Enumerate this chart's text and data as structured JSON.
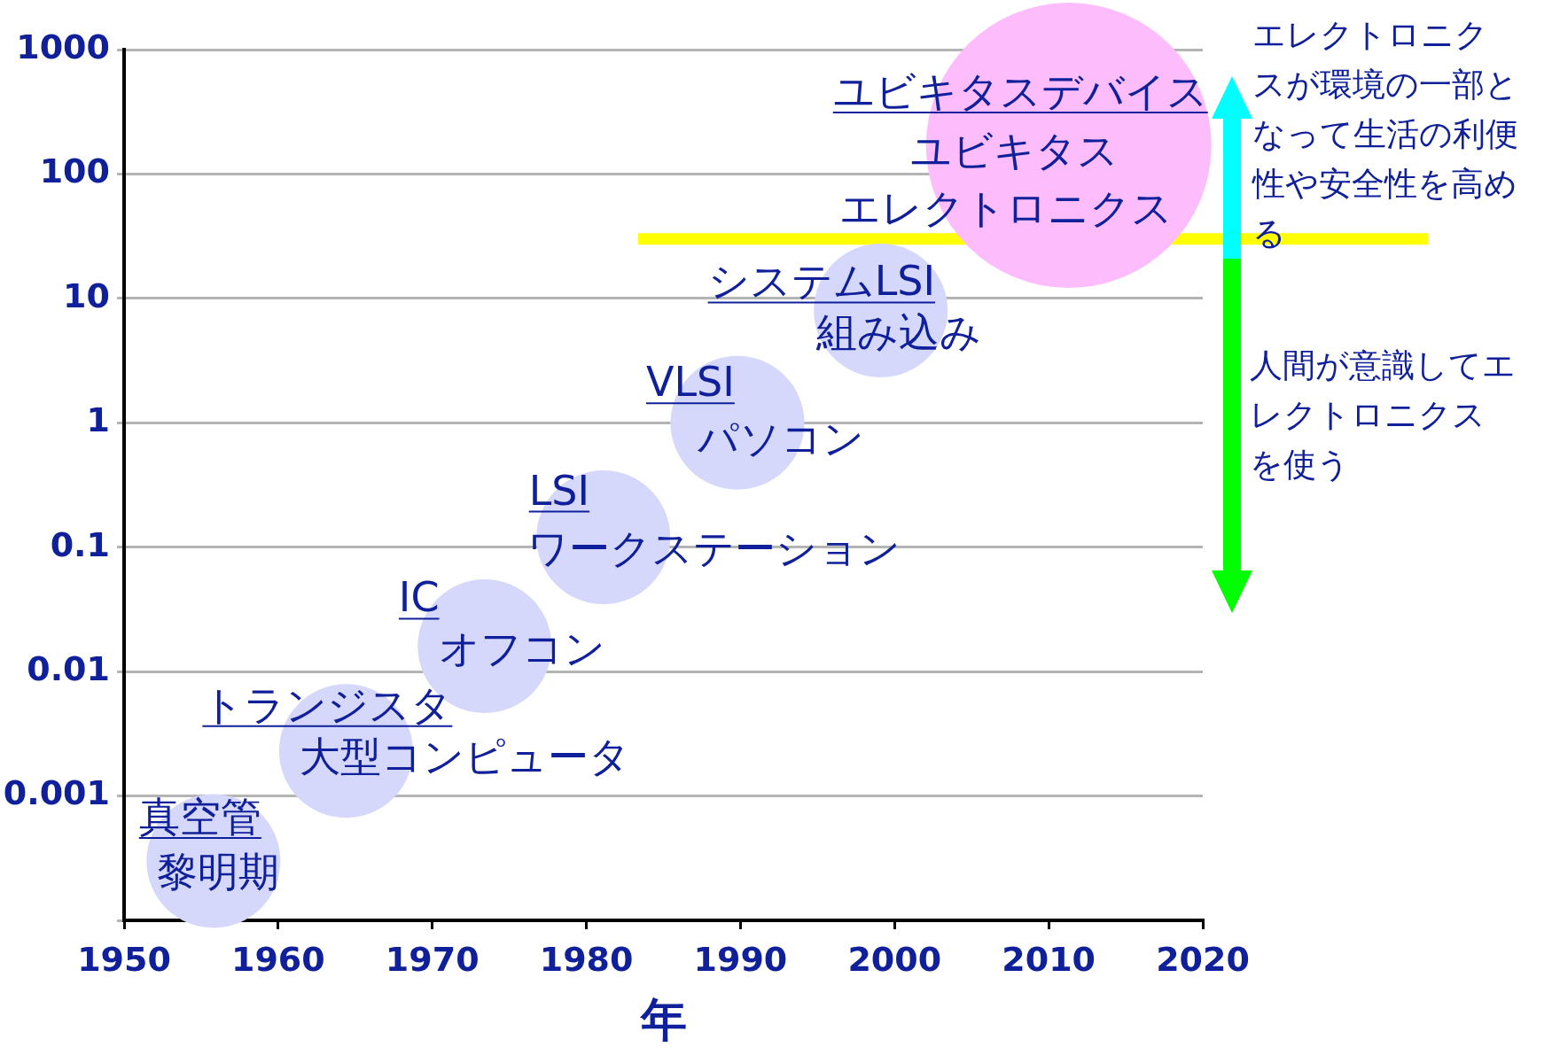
{
  "chart_data": {
    "type": "bubble",
    "xlabel": "年",
    "x": [
      1955.8,
      1964.4,
      1973.4,
      1981.1,
      1989.8,
      1999.1,
      2011.3
    ],
    "values": [
      0.0003,
      0.0023,
      0.016,
      0.12,
      1,
      8,
      170
    ],
    "sizes": [
      0.22,
      0.22,
      0.22,
      0.22,
      0.22,
      0.22,
      1
    ],
    "colors": [
      "#d5d8fb",
      "#d5d8fb",
      "#d5d8fb",
      "#d5d8fb",
      "#d5d8fb",
      "#d5d8fb",
      "#fdbdfd"
    ],
    "log": "y",
    "xlim": [
      1950,
      2020
    ],
    "xticks": [
      1950,
      1960,
      1970,
      1980,
      1990,
      2000,
      2010,
      2020
    ],
    "ylim": [
      0.0001,
      1000
    ],
    "yticks": [
      {
        "value": 0.0001,
        "label": null
      },
      0.001,
      0.01,
      0.1,
      1,
      10,
      100,
      1000
    ],
    "grid": "y",
    "ref_lines": [
      {
        "axis": "y",
        "value": 30,
        "color": "#ffff00"
      }
    ],
    "annotations": [
      "真空管",
      "黎明期",
      "トランジスタ",
      "大型コンピュータ",
      "IC",
      "オフコン",
      "LSI",
      "ワークステーション",
      "VLSI",
      "パソコン",
      "システムLSI",
      "組み込み",
      "ユビキタスデバイス",
      "ユビキタス",
      "エレクトロニクス",
      "エレクトロニクスが環境の一部となって生活の利便性や安全性を高める",
      "人間が意識してエレクトロニクスを使う"
    ]
  }
}
